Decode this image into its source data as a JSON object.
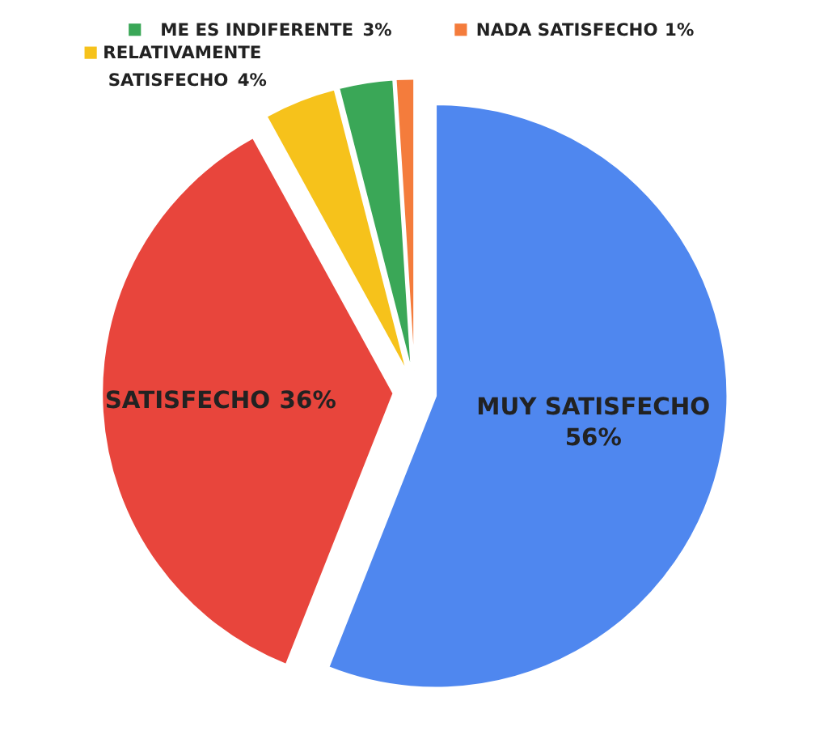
{
  "chart_data": {
    "type": "pie",
    "categories": [
      "MUY SATISFECHO",
      "SATISFECHO",
      "RELATIVAMENTE SATISFECHO",
      "ME ES INDIFERENTE",
      "NADA SATISFECHO"
    ],
    "values": [
      56,
      36,
      4,
      3,
      1
    ],
    "colors": [
      "#4f87ef",
      "#e8453c",
      "#f6c21b",
      "#3aa757",
      "#f47c3c"
    ],
    "value_labels": [
      "56%",
      "36%",
      "4%",
      "3%",
      "1%"
    ],
    "legend": "top"
  }
}
